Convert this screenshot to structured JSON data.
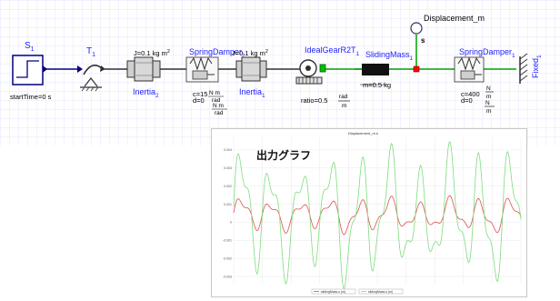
{
  "diagram": {
    "components": [
      {
        "name": "S1",
        "label": "S",
        "sub": "1",
        "param": "startTime=0 s"
      },
      {
        "name": "T1",
        "label": "T",
        "sub": "1"
      },
      {
        "name": "Inertia2",
        "label": "Inertia",
        "sub": "2",
        "param": "J=0.1 kg  m",
        "sup": "2"
      },
      {
        "name": "SpringDamper2",
        "label": "SpringDamper",
        "sub": "2",
        "param_c": "c=15",
        "param_d": "d=0"
      },
      {
        "name": "Inertia1",
        "label": "Inertia",
        "sub": "1",
        "param": "J=0.1 kg  m",
        "sup": "2"
      },
      {
        "name": "IdealGearR2T1",
        "label": "IdealGearR2T",
        "sub": "1",
        "param": "ratio=0.5"
      },
      {
        "name": "SlidingMass1",
        "label": "SlidingMass",
        "sub": "1",
        "param": "m=0.5 kg"
      },
      {
        "name": "SpringDamper1",
        "label": "SpringDamper",
        "sub": "1",
        "param_c": "c=400",
        "param_d": "d=0"
      },
      {
        "name": "Fixed1",
        "label": "Fixed",
        "sub": "1"
      },
      {
        "name": "Displacement_m",
        "label": "Displacement_m",
        "port": "s"
      }
    ],
    "units": {
      "N": "N",
      "m": "m",
      "s": "s",
      "rad": "rad",
      "Nm_rad": "N  m",
      "N_m": "N"
    }
  },
  "graph": {
    "overlay_label": "出力グラフ",
    "title": "Displacement_m.s",
    "legend": [
      "slidingMass.s (m)",
      "slidingMass.s (m)"
    ],
    "colors": {
      "red": "#e05050",
      "green": "#7fdc7f"
    }
  },
  "chart_data": {
    "type": "line",
    "series": [
      {
        "name": "slidingMass.s (m)",
        "color": "#e05050",
        "amplitude": 0.35
      },
      {
        "name": "slidingMass.s (m)",
        "color": "#7fdc7f",
        "amplitude": 1.0
      }
    ],
    "y_ticks": [
      "0.004",
      "0.003",
      "0.002",
      "0.001",
      "0",
      "-0.001",
      "-0.002",
      "-0.003"
    ],
    "ylim": [
      -0.0034,
      0.0047
    ],
    "grid": true,
    "legend_placement": "bottom"
  }
}
